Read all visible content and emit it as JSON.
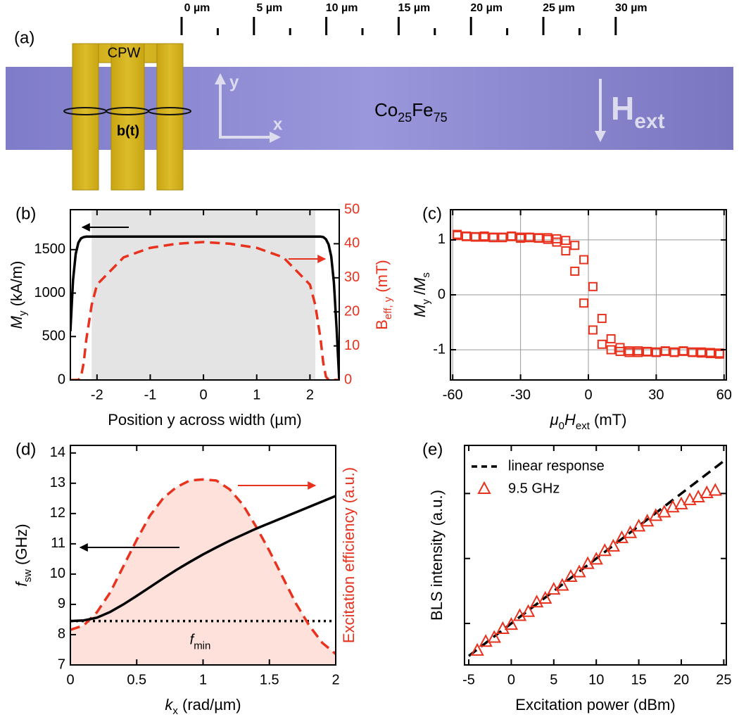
{
  "schematic": {
    "panel_label": "(a)",
    "cpw_label": "CPW",
    "field_label": "b(t)",
    "axis_y": "y",
    "axis_x": "x",
    "material": [
      {
        "text": "Co"
      },
      {
        "text": "25",
        "sub": true
      },
      {
        "text": "Fe"
      },
      {
        "text": "75",
        "sub": true
      }
    ],
    "field": [
      {
        "text": "H"
      },
      {
        "text": "ext",
        "sub": true
      }
    ],
    "scale_labels": [
      "0 µm",
      "5 µm",
      "10 µm",
      "15 µm",
      "20 µm",
      "25 µm",
      "30 µm"
    ]
  },
  "chart_data": [
    {
      "type": "line",
      "panel_label": "(b)",
      "x_label": "Position y across width (µm)",
      "y_label": [
        {
          "text": "M",
          "italic": true
        },
        {
          "text": "y",
          "sub": true
        },
        {
          "text": " (kA/m)"
        }
      ],
      "y2_label": [
        {
          "text": "B"
        },
        {
          "text": "eff, y",
          "sub": true
        },
        {
          "text": " (mT)"
        }
      ],
      "y2_color": "#e8321e",
      "xlim": [
        -2.5,
        2.55
      ],
      "xticks": [
        -2,
        -1,
        0,
        1,
        2
      ],
      "ylim": [
        0,
        1960
      ],
      "yticks": [
        0,
        500,
        1000,
        1500
      ],
      "y2lim": [
        0,
        50
      ],
      "y2ticks": [
        0,
        10,
        20,
        30,
        40,
        50
      ],
      "shaded_region": [
        -2.1,
        2.1
      ],
      "shade_color": "#e4e4e4",
      "x": [
        -2.5,
        -2.45,
        -2.4,
        -2.35,
        -2.3,
        -2.25,
        -2.2,
        -2.1,
        -2,
        -1.5,
        -1,
        -0.5,
        0,
        0.5,
        1,
        1.5,
        2,
        2.1,
        2.2,
        2.25,
        2.3,
        2.35,
        2.4,
        2.45,
        2.5,
        2.55
      ],
      "series": [
        {
          "color": "#000000",
          "line_style": "solid",
          "values": [
            560,
            1150,
            1450,
            1580,
            1630,
            1645,
            1650,
            1650,
            1650,
            1650,
            1650,
            1650,
            1650,
            1650,
            1650,
            1650,
            1650,
            1650,
            1650,
            1645,
            1620,
            1560,
            1420,
            1120,
            600,
            0
          ]
        },
        {
          "color": "#e8321e",
          "line_style": "dashed",
          "axis": "y2",
          "values": [
            0,
            0,
            0,
            0,
            1,
            5,
            12,
            22,
            28,
            36,
            38.8,
            40,
            40.5,
            40,
            38.8,
            36,
            28,
            22,
            12,
            5,
            1,
            0,
            0,
            0,
            0,
            0
          ]
        }
      ]
    },
    {
      "type": "scatter",
      "panel_label": "(c)",
      "x_label": [
        {
          "text": "μ",
          "italic": true
        },
        {
          "text": "0",
          "sub": true
        },
        {
          "text": "H",
          "italic": true
        },
        {
          "text": "ext",
          "sub": true
        },
        {
          "text": " (mT)"
        }
      ],
      "y_label": [
        {
          "text": "M",
          "italic": true
        },
        {
          "text": "y",
          "sub": true
        },
        {
          "text": " /"
        },
        {
          "text": "M",
          "italic": true
        },
        {
          "text": "s",
          "sub": true
        }
      ],
      "xlim": [
        -61,
        61
      ],
      "xticks": [
        -60,
        -30,
        0,
        30,
        60
      ],
      "ylim": [
        -1.55,
        1.55
      ],
      "yticks": [
        -1,
        0,
        1
      ],
      "grid": true,
      "x": [
        -58,
        -54,
        -50,
        -46,
        -42,
        -38,
        -34,
        -30,
        -26,
        -22,
        -18,
        -14,
        -10,
        -6,
        -2,
        2,
        6,
        10,
        14,
        18,
        22,
        26,
        30,
        34,
        38,
        42,
        46,
        50,
        54,
        58
      ],
      "series": [
        {
          "color": "#e8321e",
          "marker": "square",
          "values": [
            1.08,
            1.06,
            1.05,
            1.07,
            1.04,
            1.05,
            1.06,
            1.03,
            1.05,
            1.04,
            1.04,
            1.02,
            0.99,
            0.9,
            0.64,
            0.15,
            -0.43,
            -0.8,
            -0.96,
            -1.02,
            -1.05,
            -1.03,
            -1.04,
            -1.02,
            -1.05,
            -1.03,
            -1.04,
            -1.06,
            -1.05,
            -1.08
          ]
        },
        {
          "color": "#e8321e",
          "marker": "square",
          "values": [
            1.1,
            1.07,
            1.06,
            1.05,
            1.05,
            1.04,
            1.07,
            1.05,
            1.04,
            1.03,
            1.01,
            0.96,
            0.8,
            0.43,
            -0.15,
            -0.64,
            -0.9,
            -1.0,
            -1.03,
            -1.05,
            -1.02,
            -1.04,
            -1.05,
            -1.03,
            -1.04,
            -1.02,
            -1.05,
            -1.04,
            -1.07,
            -1.06
          ]
        }
      ]
    },
    {
      "type": "line",
      "panel_label": "(d)",
      "x_label": [
        {
          "text": "k",
          "italic": true
        },
        {
          "text": "x",
          "sub": true
        },
        {
          "text": " (rad/µm)"
        }
      ],
      "y_label": [
        {
          "text": "f",
          "italic": true
        },
        {
          "text": "sw",
          "sub": true
        },
        {
          "text": " (GHz)"
        }
      ],
      "y2_label": "Excitation efficiency (a.u.)",
      "y2_color": "#e8321e",
      "xlim": [
        0,
        2
      ],
      "xticks": [
        0,
        0.5,
        1,
        1.5,
        2
      ],
      "ylim": [
        7,
        14.25
      ],
      "yticks": [
        7,
        8,
        9,
        10,
        11,
        12,
        13,
        14
      ],
      "y2lim": [
        0,
        1
      ],
      "reference_line": {
        "value": 8.45,
        "color": "#000000",
        "line_style": "dotted",
        "label": [
          {
            "text": "f",
            "italic": true
          },
          {
            "text": "min",
            "sub": true
          }
        ]
      },
      "x": [
        0,
        0.1,
        0.2,
        0.3,
        0.4,
        0.5,
        0.6,
        0.7,
        0.8,
        0.9,
        1.0,
        1.1,
        1.2,
        1.3,
        1.4,
        1.5,
        1.6,
        1.7,
        1.8,
        1.9,
        2.0
      ],
      "series": [
        {
          "color": "#e8321e",
          "line_style": "dashed",
          "axis": "y2",
          "fill_color": "#fde1da",
          "values": [
            0.16,
            0.18,
            0.24,
            0.33,
            0.45,
            0.57,
            0.68,
            0.76,
            0.81,
            0.84,
            0.845,
            0.84,
            0.8,
            0.73,
            0.63,
            0.52,
            0.4,
            0.28,
            0.18,
            0.1,
            0.05
          ]
        },
        {
          "color": "#000000",
          "line_style": "solid",
          "values": [
            8.45,
            8.47,
            8.56,
            8.75,
            9.0,
            9.28,
            9.57,
            9.86,
            10.14,
            10.4,
            10.65,
            10.88,
            11.1,
            11.3,
            11.5,
            11.68,
            11.86,
            12.04,
            12.22,
            12.4,
            12.58
          ]
        }
      ]
    },
    {
      "type": "scatter",
      "panel_label": "(e)",
      "x_label": "Excitation power (dBm)",
      "y_label": "BLS intensity (a.u.)",
      "xlim": [
        -5.5,
        25.3
      ],
      "xticks": [
        -5,
        0,
        5,
        10,
        15,
        20,
        25
      ],
      "ylim": [
        0.23,
        550
      ],
      "ylog": true,
      "yticks": [
        1,
        10,
        100
      ],
      "ytick_labels": false,
      "legend": "upper left",
      "series": [
        {
          "name": "linear response",
          "color": "#000000",
          "line_style": "dashed",
          "x": [
            -5,
            25
          ],
          "values": [
            0.316,
            316.2
          ]
        },
        {
          "name": "9.5 GHz",
          "color": "#e8321e",
          "marker": "triangle",
          "x": [
            -4,
            -3,
            -2,
            -1,
            0,
            1,
            2,
            3,
            4,
            5,
            6,
            7,
            8,
            9,
            10,
            11,
            12,
            13,
            14,
            15,
            16,
            17,
            18,
            19,
            20,
            21,
            22,
            23,
            24
          ],
          "values": [
            0.38,
            0.52,
            0.6,
            0.82,
            0.95,
            1.3,
            1.5,
            2.1,
            2.4,
            3.3,
            3.8,
            5.2,
            6.1,
            8.2,
            9.6,
            13,
            15.2,
            20.5,
            24.5,
            31,
            37,
            45,
            51,
            61,
            68,
            79,
            87,
            101,
            110
          ]
        }
      ]
    }
  ]
}
